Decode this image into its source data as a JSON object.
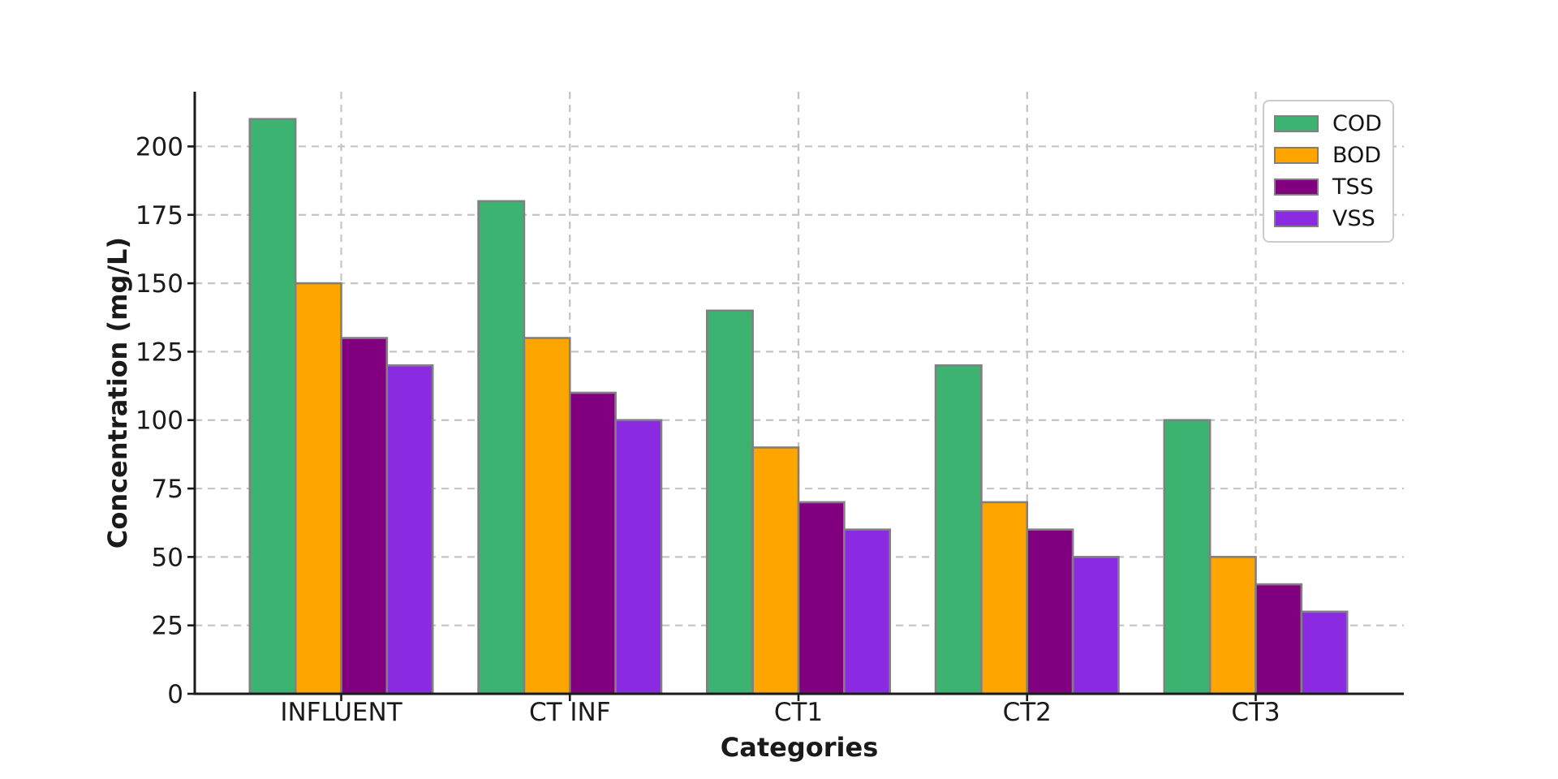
{
  "chart_data": {
    "type": "bar",
    "title": "",
    "xlabel": "Categories",
    "ylabel": "Concentration (mg/L)",
    "categories": [
      "INFLUENT",
      "CT INF",
      "CT1",
      "CT2",
      "CT3"
    ],
    "series": [
      {
        "name": "COD",
        "color": "#3cb371",
        "values": [
          210,
          180,
          140,
          120,
          100
        ]
      },
      {
        "name": "BOD",
        "color": "#ffa500",
        "values": [
          150,
          130,
          90,
          70,
          50
        ]
      },
      {
        "name": "TSS",
        "color": "#800080",
        "values": [
          130,
          110,
          70,
          60,
          40
        ]
      },
      {
        "name": "VSS",
        "color": "#8a2be2",
        "values": [
          120,
          100,
          60,
          50,
          30
        ]
      }
    ],
    "yticks": [
      0,
      25,
      50,
      75,
      100,
      125,
      150,
      175,
      200
    ],
    "ylim": [
      0,
      220
    ],
    "grid": true,
    "grid_style": "dashed",
    "grid_color": "#c4c4c4",
    "bar_edge_color": "#808080",
    "legend_position": "upper right",
    "legend_entries": [
      "COD",
      "BOD",
      "TSS",
      "VSS"
    ],
    "background_color": "#ffffff"
  }
}
